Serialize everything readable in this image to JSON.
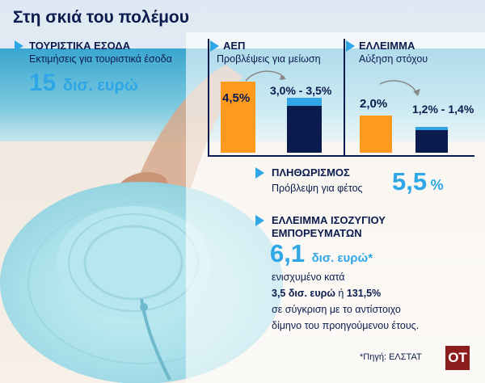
{
  "title": "Στη σκιά του πολέμου",
  "tourism": {
    "heading": "ΤΟΥΡΙΣΤΙΚΑ ΕΣΟΔΑ",
    "subtitle": "Εκτιμήσεις για τουριστικά έσοδα",
    "value": "15",
    "unit": "δισ. ευρώ"
  },
  "gdp": {
    "heading": "ΑΕΠ",
    "subtitle": "Προβλέψεις για μείωση",
    "before_label": "4,5%",
    "after_label": "3,0% - 3,5%",
    "chart_data": {
      "type": "bar",
      "categories": [
        "",
        ""
      ],
      "values": [
        4.5,
        3.5
      ],
      "range_low": 3.0,
      "range_high": 3.5
    }
  },
  "deficit": {
    "heading": "ΕΛΛΕΙΜΜΑ",
    "subtitle": "Αύξηση στόχου",
    "before_label": "2,0%",
    "after_label": "1,2% - 1,4%",
    "chart_data": {
      "type": "bar",
      "categories": [
        "",
        ""
      ],
      "values": [
        2.0,
        1.4
      ],
      "range_low": 1.2,
      "range_high": 1.4
    }
  },
  "inflation": {
    "heading": "ΠΛΗΘΩΡΙΣΜΟΣ",
    "subtitle": "Πρόβλεψη για φέτος",
    "value": "5,5",
    "unit": "%"
  },
  "trade": {
    "heading_line1": "ΕΛΛΕΙΜΜΑ ΙΣΟΖΥΓΙΟΥ",
    "heading_line2": "ΕΜΠΟΡΕΥΜΑΤΩΝ",
    "value": "6,1",
    "unit": "δισ. ευρώ*",
    "text1": "ενισχυμένο κατά",
    "text2_bold": "3,5 δισ. ευρώ",
    "text2_mid": " ή ",
    "text2_bold2": "131,5%",
    "text3": "σε σύγκριση με το αντίστοιχο",
    "text4": "δίμηνο του προηγούμενου έτους."
  },
  "source": "*Πηγή: ΕΛΣΤΑΤ",
  "logo": "ΟΤ",
  "colors": {
    "accent": "#2fa6e6",
    "navy": "#0b1b4d",
    "orange": "#ff9a1f",
    "logo_bg": "#8d1d1d"
  }
}
